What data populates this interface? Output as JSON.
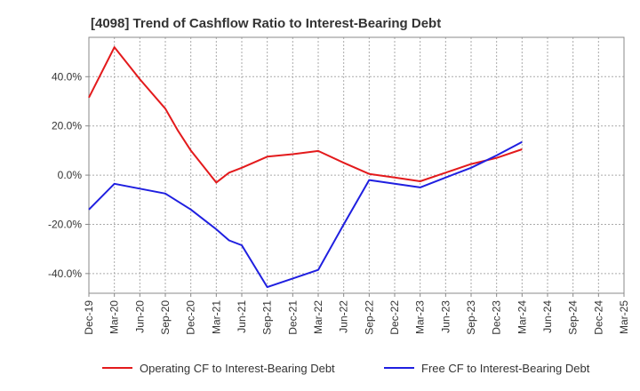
{
  "chart_data": {
    "type": "line",
    "title": "[4098]  Trend of Cashflow Ratio to Interest-Bearing Debt",
    "xlabel": "",
    "ylabel": "",
    "ylim": [
      -48,
      56
    ],
    "yticks": [
      40,
      20,
      0,
      -20,
      -40
    ],
    "ytick_labels": [
      "40.0%",
      "20.0%",
      "0.0%",
      "-20.0%",
      "-40.0%"
    ],
    "categories": [
      "Dec-19",
      "Mar-20",
      "Jun-20",
      "Sep-20",
      "Dec-20",
      "Mar-21",
      "Jun-21",
      "Sep-21",
      "Dec-21",
      "Mar-22",
      "Jun-22",
      "Sep-22",
      "Dec-22",
      "Mar-23",
      "Jun-23",
      "Sep-23",
      "Dec-23",
      "Mar-24",
      "Jun-24",
      "Sep-24",
      "Dec-24",
      "Mar-25"
    ],
    "grid": true,
    "legend": "bottom",
    "series": [
      {
        "name": "Operating CF to Interest-Bearing Debt",
        "color": "#e31a1c",
        "x": [
          0,
          1,
          2,
          3,
          3.5,
          4,
          5,
          5.5,
          6,
          7,
          8,
          9,
          10,
          11,
          12,
          13,
          14,
          15,
          16,
          17
        ],
        "values": [
          31.5,
          52.0,
          39.0,
          27.0,
          18.0,
          10.0,
          -3.0,
          1.0,
          3.0,
          7.5,
          8.5,
          9.8,
          5.0,
          0.5,
          -1.0,
          -2.5,
          1.0,
          4.5,
          7.0,
          10.5
        ]
      },
      {
        "name": "Free CF to Interest-Bearing Debt",
        "color": "#1f1fe0",
        "x": [
          0,
          1,
          2,
          3,
          4,
          5,
          5.5,
          6,
          7,
          8,
          9,
          10,
          11,
          12,
          13,
          14,
          15,
          16,
          17
        ],
        "values": [
          -14.0,
          -3.5,
          -5.5,
          -7.5,
          -14.0,
          -22.0,
          -26.5,
          -28.5,
          -45.5,
          -42.0,
          -38.5,
          -20.0,
          -2.0,
          -3.5,
          -5.0,
          -1.0,
          3.0,
          8.0,
          13.5
        ]
      }
    ]
  }
}
